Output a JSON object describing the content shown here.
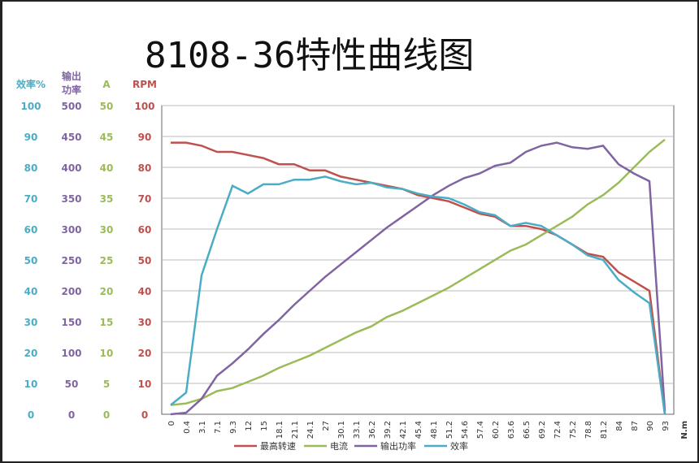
{
  "chart_data": {
    "type": "line",
    "title": "8108-36特性曲线图",
    "xlabel": "N.m",
    "categories": [
      "0",
      "0.4",
      "3.1",
      "7.1",
      "9.3",
      "12",
      "15",
      "18.1",
      "21.1",
      "24.1",
      "27",
      "30.1",
      "33.1",
      "36.2",
      "39.2",
      "42.1",
      "45.4",
      "48.1",
      "51.2",
      "54.6",
      "57.4",
      "60.2",
      "63.6",
      "66.5",
      "69.2",
      "72.4",
      "75.2",
      "78.8",
      "81.2",
      "84",
      "87",
      "90",
      "93"
    ],
    "axes": [
      {
        "label": "效率%",
        "ticks": [
          "0",
          "10",
          "20",
          "30",
          "40",
          "50",
          "60",
          "70",
          "80",
          "90",
          "100"
        ],
        "color": "#4bacc6"
      },
      {
        "label": "输出功率",
        "ticks": [
          "0",
          "50",
          "100",
          "150",
          "200",
          "250",
          "300",
          "350",
          "400",
          "450",
          "500"
        ],
        "color": "#8064a2"
      },
      {
        "label": "A",
        "ticks": [
          "0",
          "5",
          "10",
          "15",
          "20",
          "25",
          "30",
          "35",
          "40",
          "45",
          "50"
        ],
        "color": "#9bbb59"
      },
      {
        "label": "RPM",
        "ticks": [
          "0",
          "10",
          "20",
          "30",
          "40",
          "50",
          "60",
          "70",
          "80",
          "90",
          "100"
        ],
        "color": "#c0504d"
      }
    ],
    "ylim": [
      0,
      100
    ],
    "grid": true,
    "legend": "bottom",
    "series": [
      {
        "name": "最高转速",
        "color": "#c0504d",
        "values": [
          88,
          88,
          87,
          85,
          85,
          84,
          83,
          81,
          81,
          79,
          79,
          77,
          76,
          75,
          74,
          73,
          71,
          70,
          69,
          67,
          65,
          64,
          61,
          61,
          60,
          58,
          55,
          52,
          51,
          46,
          43,
          40,
          0
        ]
      },
      {
        "name": "电流",
        "color": "#9bbb59",
        "values": [
          3,
          3.5,
          5,
          7.5,
          8.5,
          10.5,
          12.5,
          15,
          17,
          19,
          21.5,
          24,
          26.5,
          28.5,
          31.5,
          33.5,
          36,
          38.5,
          41,
          44,
          47,
          50,
          53,
          55,
          58,
          61,
          64,
          68,
          71,
          75,
          80,
          85,
          89
        ]
      },
      {
        "name": "输出功率",
        "color": "#8064a2",
        "values": [
          0,
          0.5,
          5,
          12.5,
          16.5,
          21,
          26,
          30.5,
          35.5,
          40,
          44.5,
          48.5,
          52.5,
          56.5,
          60.5,
          64,
          67.5,
          71,
          74,
          76.5,
          78,
          80.5,
          81.5,
          85,
          87,
          88,
          86.5,
          86,
          87,
          81,
          78,
          75.5,
          1
        ]
      },
      {
        "name": "效率",
        "color": "#4bacc6",
        "values": [
          3,
          7,
          45,
          60,
          74,
          71.5,
          74.5,
          74.5,
          76,
          76,
          77,
          75.5,
          74.5,
          75,
          73.5,
          73,
          71.5,
          70.5,
          70,
          68,
          65.5,
          64.5,
          61,
          62,
          61,
          58,
          55,
          51.5,
          50,
          43.5,
          39.5,
          36,
          0
        ]
      }
    ]
  }
}
